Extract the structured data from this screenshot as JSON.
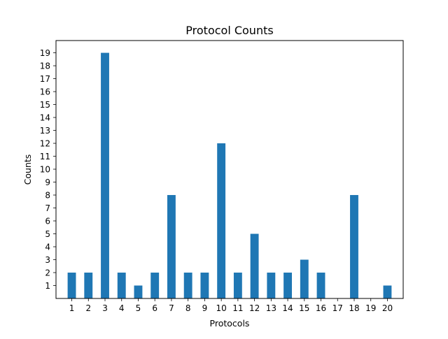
{
  "chart_data": {
    "type": "bar",
    "title": "Protocol Counts",
    "xlabel": "Protocols",
    "ylabel": "Counts",
    "categories": [
      "1",
      "2",
      "3",
      "4",
      "5",
      "6",
      "7",
      "8",
      "9",
      "10",
      "11",
      "12",
      "13",
      "14",
      "15",
      "16",
      "17",
      "18",
      "19",
      "20"
    ],
    "values": [
      2,
      2,
      19,
      2,
      1,
      2,
      8,
      2,
      2,
      12,
      2,
      5,
      2,
      2,
      3,
      2,
      0,
      8,
      0,
      1
    ],
    "yticks": [
      1,
      2,
      3,
      4,
      5,
      6,
      7,
      8,
      9,
      10,
      11,
      12,
      13,
      14,
      15,
      16,
      17,
      18,
      19
    ],
    "ylim": [
      0,
      19.95
    ],
    "xlim": [
      0.05,
      20.95
    ],
    "bar_width": 0.5,
    "bar_color": "#1f77b4",
    "grid": false,
    "legend": "none"
  }
}
